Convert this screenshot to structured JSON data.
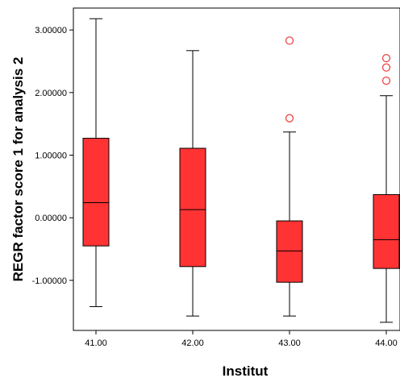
{
  "chart_data": {
    "type": "boxplot",
    "title": "",
    "xlabel": "Institut",
    "ylabel": "REGR factor score   1 for analysis 2",
    "categories": [
      "41.00",
      "42.00",
      "43.00",
      "44.00"
    ],
    "y_ticks": [
      "-1.00000",
      "0.00000",
      "1.00000",
      "2.00000",
      "3.00000"
    ],
    "y_tick_values": [
      -1,
      0,
      1,
      2,
      3
    ],
    "ylim": [
      -1.8,
      3.35
    ],
    "boxes": [
      {
        "category": "41.00",
        "whisker_low": -1.42,
        "q1": -0.45,
        "median": 0.24,
        "q3": 1.27,
        "whisker_high": 3.18,
        "outliers": []
      },
      {
        "category": "42.00",
        "whisker_low": -1.57,
        "q1": -0.78,
        "median": 0.13,
        "q3": 1.11,
        "whisker_high": 2.67,
        "outliers": []
      },
      {
        "category": "43.00",
        "whisker_low": -1.57,
        "q1": -1.03,
        "median": -0.53,
        "q3": -0.05,
        "whisker_high": 1.37,
        "outliers": [
          1.59,
          2.83
        ]
      },
      {
        "category": "44.00",
        "whisker_low": -1.67,
        "q1": -0.81,
        "median": -0.35,
        "q3": 0.37,
        "whisker_high": 1.95,
        "outliers": [
          2.19,
          2.4,
          2.55
        ]
      }
    ],
    "grid": false,
    "colors": {
      "box_fill": "#ff3333",
      "outlier_stroke": "#ee4444",
      "line": "#000000"
    }
  }
}
